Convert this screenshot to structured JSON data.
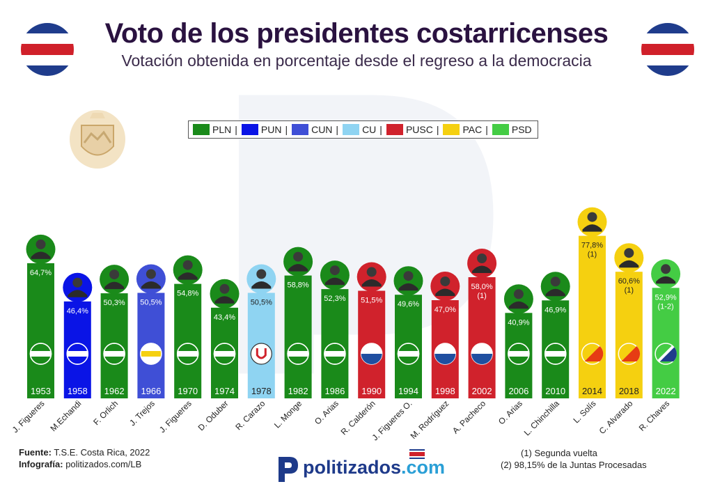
{
  "title": "Voto de los presidentes costarricenses",
  "subtitle": "Votación obtenida en porcentaje desde el regreso a la democracia",
  "legend": [
    {
      "label": "PLN",
      "color": "#1a8a1a"
    },
    {
      "label": "PUN",
      "color": "#0a14e6"
    },
    {
      "label": "CUN",
      "color": "#3f4fd6"
    },
    {
      "label": "CU",
      "color": "#8fd4f2"
    },
    {
      "label": "PUSC",
      "color": "#d0222c"
    },
    {
      "label": "PAC",
      "color": "#f5d010"
    },
    {
      "label": "PSD",
      "color": "#44cc44"
    }
  ],
  "legend_sep": "|",
  "chart_data": {
    "type": "bar",
    "title": "Voto de los presidentes costarricenses",
    "ylabel": "Votación obtenida en porcentaje",
    "ylim": [
      0,
      80
    ],
    "categories": [
      "J. Figueres",
      "M.Echandi",
      "F. Orlich",
      "J. Trejos",
      "J. Figueres",
      "D. Oduber",
      "R. Carazo",
      "L. Monge",
      "O. Arias",
      "R. Calderón",
      "J. Figueres O.",
      "M. Rodríguez",
      "A. Pacheco",
      "O. Arias",
      "L. Chinchilla",
      "L. Solís",
      "C. Alvarado",
      "R. Chaves"
    ],
    "years": [
      "1953",
      "1958",
      "1962",
      "1966",
      "1970",
      "1974",
      "1978",
      "1982",
      "1986",
      "1990",
      "1994",
      "1998",
      "2002",
      "2006",
      "2010",
      "2014",
      "2018",
      "2022"
    ],
    "values": [
      64.7,
      46.4,
      50.3,
      50.5,
      54.8,
      43.4,
      50.5,
      58.8,
      52.3,
      51.5,
      49.6,
      47.0,
      58.0,
      40.9,
      46.9,
      77.8,
      60.6,
      52.9
    ],
    "value_labels": [
      "64,7%",
      "46,4%",
      "50,3%",
      "50,5%",
      "54,8%",
      "43,4%",
      "50,5%",
      "58,8%",
      "52,3%",
      "51,5%",
      "49,6%",
      "47,0%",
      "58,0%",
      "40,9%",
      "46,9%",
      "77,8%",
      "60,6%",
      "52,9%"
    ],
    "notes": [
      "",
      "",
      "",
      "",
      "",
      "",
      "",
      "",
      "",
      "",
      "",
      "",
      "(1)",
      "",
      "",
      "(1)",
      "(1)",
      "(1-2)"
    ],
    "parties": [
      "PLN",
      "PUN",
      "PLN",
      "CUN",
      "PLN",
      "PLN",
      "CU",
      "PLN",
      "PLN",
      "PUSC",
      "PLN",
      "PUSC",
      "PUSC",
      "PLN",
      "PLN",
      "PAC",
      "PAC",
      "PSD"
    ]
  },
  "footer": {
    "source_label": "Fuente:",
    "source_value": "T.S.E. Costa Rica, 2022",
    "credit_label": "Infografía:",
    "credit_value": "politizados.com/LB",
    "note1": "(1) Segunda vuelta",
    "note2": "(2) 98,15% de la Juntas Procesadas"
  },
  "logo": {
    "main": "politizados",
    "suffix": ".com"
  }
}
